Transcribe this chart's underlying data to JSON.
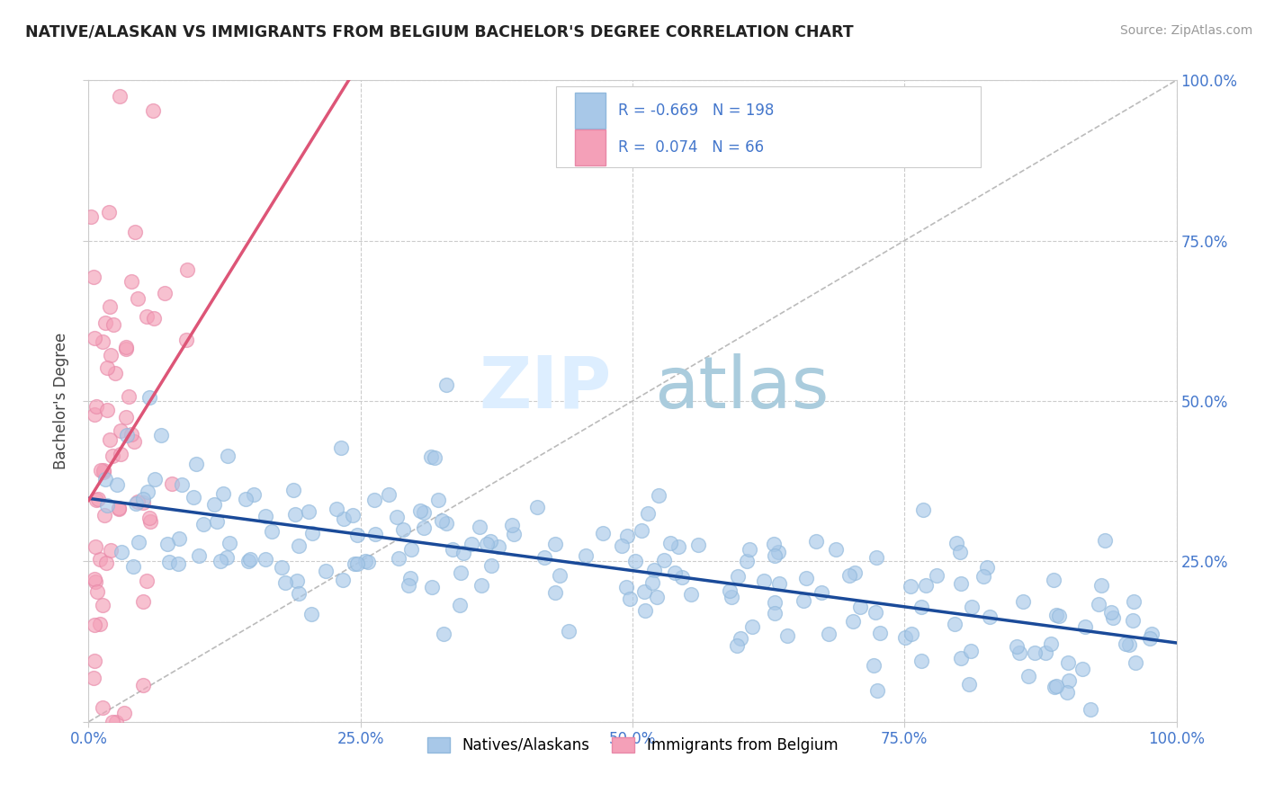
{
  "title": "NATIVE/ALASKAN VS IMMIGRANTS FROM BELGIUM BACHELOR'S DEGREE CORRELATION CHART",
  "source": "Source: ZipAtlas.com",
  "ylabel": "Bachelor's Degree",
  "r_native": -0.669,
  "n_native": 198,
  "r_immigrant": 0.074,
  "n_immigrant": 66,
  "native_color": "#a8c8e8",
  "native_edge_color": "#90b8dc",
  "immigrant_color": "#f4a0b8",
  "immigrant_edge_color": "#e888a8",
  "native_line_color": "#1a4a99",
  "immigrant_line_color": "#dd5577",
  "legend_labels": [
    "Natives/Alaskans",
    "Immigrants from Belgium"
  ],
  "xlim": [
    0.0,
    1.0
  ],
  "ylim": [
    0.0,
    1.0
  ],
  "xticks": [
    0.0,
    0.25,
    0.5,
    0.75,
    1.0
  ],
  "yticks": [
    0.0,
    0.25,
    0.5,
    0.75,
    1.0
  ],
  "xticklabels": [
    "0.0%",
    "25.0%",
    "50.0%",
    "75.0%",
    "100.0%"
  ],
  "yticklabels_right": [
    "",
    "25.0%",
    "50.0%",
    "75.0%",
    "100.0%"
  ],
  "grid_color": "#cccccc",
  "tick_color": "#4477cc",
  "background_color": "#ffffff"
}
